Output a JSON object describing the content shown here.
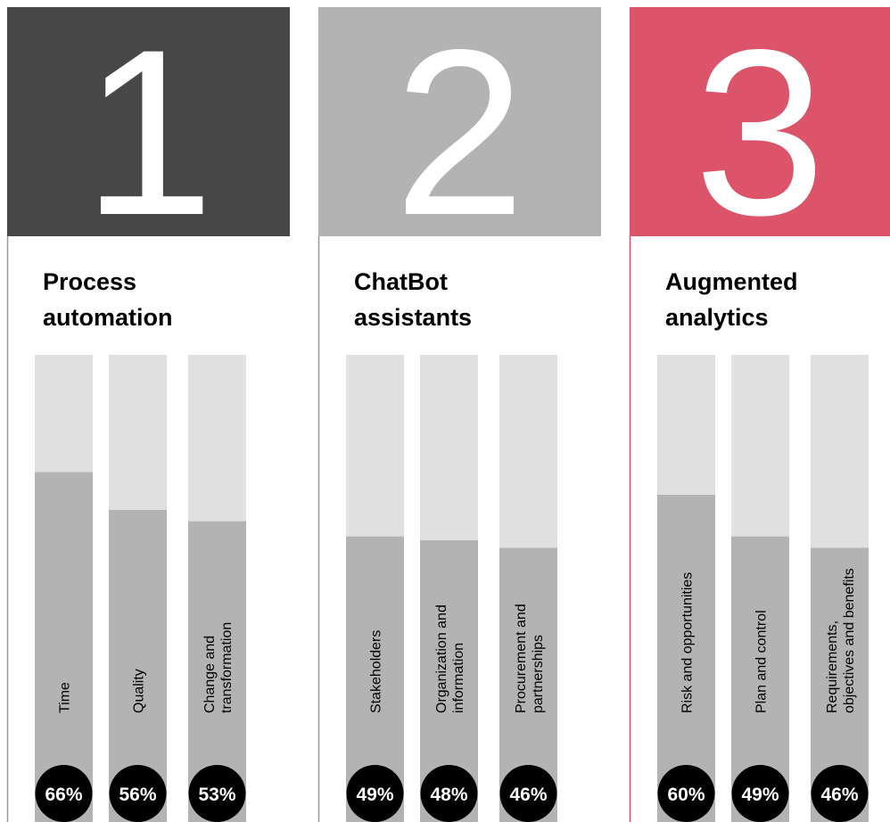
{
  "chart_data": [
    {
      "type": "bar",
      "number": "1",
      "title": [
        "Process",
        "automation"
      ],
      "header_color": "#474747",
      "border_color": "#9a9a9a",
      "bar_color": "#b3b3b3",
      "track_color": "#e0e0e0",
      "ylim": [
        0,
        100
      ],
      "categories": [
        [
          "Time"
        ],
        [
          "Quality"
        ],
        [
          "Change and",
          "transformation"
        ]
      ],
      "values": [
        66,
        56,
        53
      ],
      "value_labels": [
        "66%",
        "56%",
        "53%"
      ]
    },
    {
      "type": "bar",
      "number": "2",
      "title": [
        "ChatBot",
        "assistants"
      ],
      "header_color": "#b3b3b3",
      "border_color": "#9a9a9a",
      "bar_color": "#b3b3b3",
      "track_color": "#e0e0e0",
      "ylim": [
        0,
        100
      ],
      "categories": [
        [
          "Stakeholders"
        ],
        [
          "Organization and",
          "information"
        ],
        [
          "Procurement and",
          "partnerships"
        ]
      ],
      "values": [
        49,
        48,
        46
      ],
      "value_labels": [
        "49%",
        "48%",
        "46%"
      ]
    },
    {
      "type": "bar",
      "number": "3",
      "title": [
        "Augmented",
        "analytics"
      ],
      "header_color": "#dc5469",
      "border_color": "#dc5469",
      "bar_color": "#b3b3b3",
      "track_color": "#e0e0e0",
      "ylim": [
        0,
        100
      ],
      "categories": [
        [
          "Risk and opportunities"
        ],
        [
          "Plan and control"
        ],
        [
          "Requirements,",
          "objectives and benefits"
        ]
      ],
      "values": [
        60,
        49,
        46
      ],
      "value_labels": [
        "60%",
        "49%",
        "46%"
      ]
    }
  ]
}
